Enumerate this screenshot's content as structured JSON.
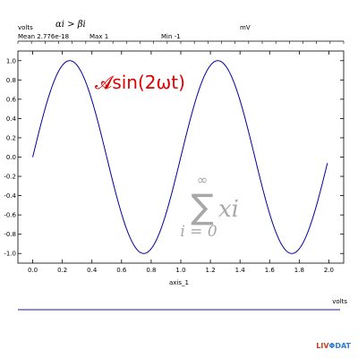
{
  "header": {
    "left_unit": "volts",
    "math_title": "αi > βi",
    "right_unit": "mV",
    "stats": {
      "mean": "Mean 2.776e-18",
      "max": "Max 1",
      "min": "Min -1"
    }
  },
  "annotations": {
    "formula_red": "𝓐sin(2ωt)",
    "sum_symbol": "∑",
    "sum_upper": "∞",
    "sum_lower": "i = 0",
    "sum_term": "xi"
  },
  "bottom_panel": {
    "unit": "volts"
  },
  "logo": {
    "part1": "LIV",
    "part2": "ΦDAT"
  },
  "colors": {
    "series": "#0000a0",
    "annotation_red": "#e00000",
    "annotation_gray": "#a8a8a8",
    "bottom_line": "#1a1aa0"
  },
  "chart_data": {
    "type": "line",
    "title": "αi > βi",
    "xlabel": "axis_1",
    "ylabel": "volts",
    "xlim": [
      -0.1,
      2.1
    ],
    "ylim": [
      -1.1,
      1.1
    ],
    "grid": false,
    "x_ticks": [
      0.0,
      0.2,
      0.4,
      0.6,
      0.8,
      1.0,
      1.2,
      1.4,
      1.6,
      1.8,
      2.0
    ],
    "x_tick_labels": [
      "0.0",
      "0.2",
      "0.4",
      "0.6",
      "0.8",
      "1.0",
      "1.2",
      "1.4",
      "1.6",
      "1.8",
      "2.0"
    ],
    "y_ticks": [
      -1.0,
      -0.8,
      -0.6,
      -0.4,
      -0.2,
      0.0,
      0.2,
      0.4,
      0.6,
      0.8,
      1.0
    ],
    "y_tick_labels": [
      "-1.0",
      "-0.8",
      "-0.6",
      "-0.4",
      "-0.2",
      "0.0",
      "0.2",
      "0.4",
      "0.6",
      "0.8",
      "1.0"
    ],
    "series": [
      {
        "function": "sin(2*pi*x)",
        "x": [
          0.0,
          0.05,
          0.1,
          0.15,
          0.2,
          0.25,
          0.3,
          0.35,
          0.4,
          0.45,
          0.5,
          0.55,
          0.6,
          0.65,
          0.7,
          0.75,
          0.8,
          0.85,
          0.9,
          0.95,
          1.0,
          1.05,
          1.1,
          1.15,
          1.2,
          1.25,
          1.3,
          1.35,
          1.4,
          1.45,
          1.5,
          1.55,
          1.6,
          1.65,
          1.7,
          1.75,
          1.8,
          1.85,
          1.9,
          1.95,
          1.99
        ],
        "y": [
          0.0,
          0.309,
          0.588,
          0.809,
          0.951,
          1.0,
          0.951,
          0.809,
          0.588,
          0.309,
          0.0,
          -0.309,
          -0.588,
          -0.809,
          -0.951,
          -1.0,
          -0.951,
          -0.809,
          -0.588,
          -0.309,
          0.0,
          0.309,
          0.588,
          0.809,
          0.951,
          1.0,
          0.951,
          0.809,
          0.588,
          0.309,
          0.0,
          -0.309,
          -0.588,
          -0.809,
          -0.951,
          -1.0,
          -0.951,
          -0.809,
          -0.588,
          -0.309,
          -0.063
        ]
      }
    ]
  }
}
